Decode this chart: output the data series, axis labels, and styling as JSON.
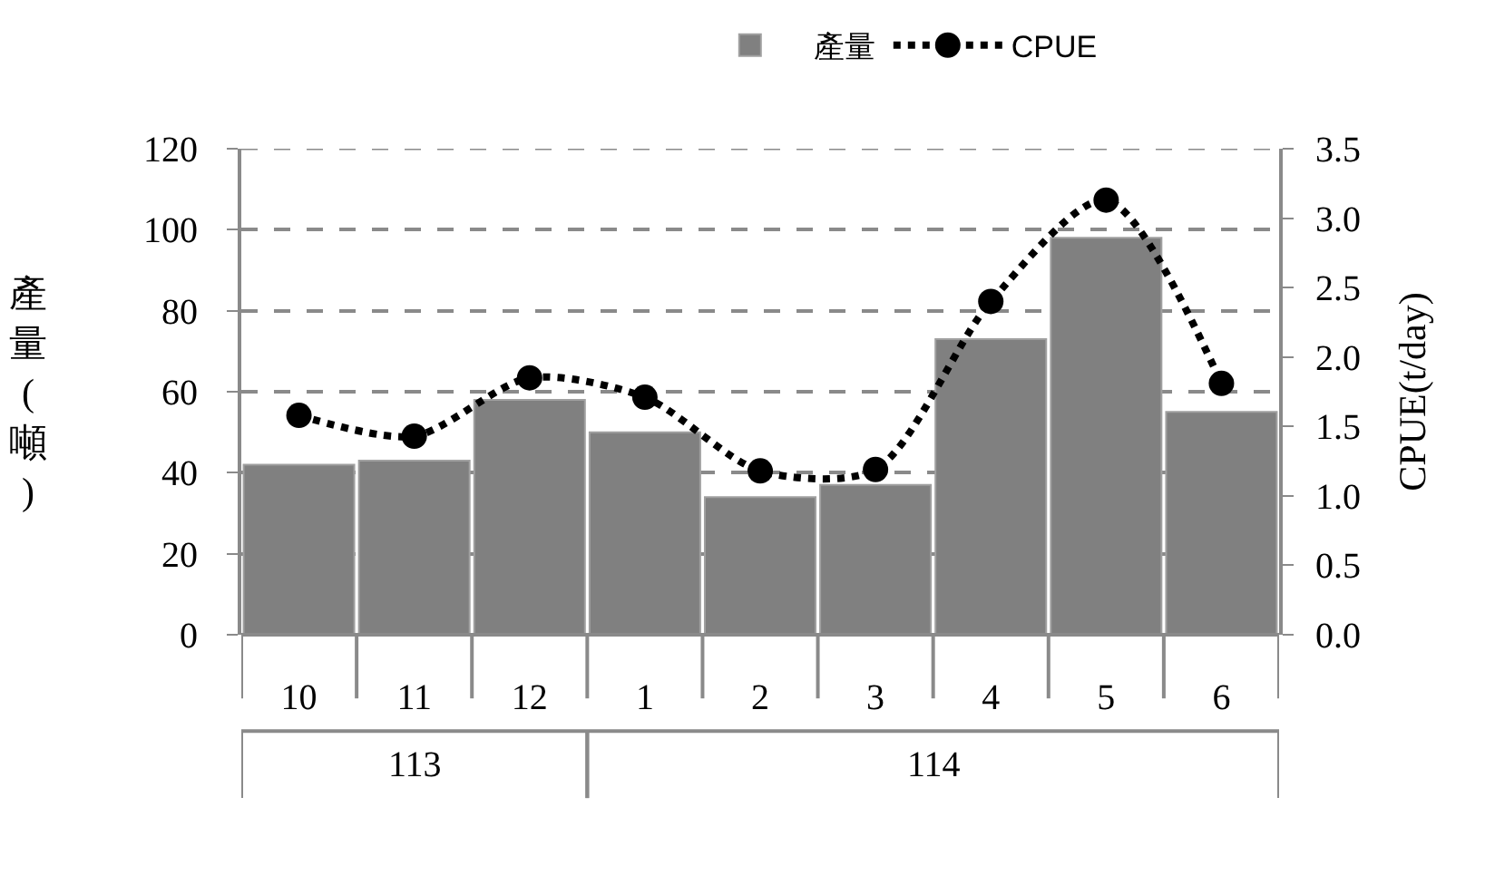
{
  "chart_data": {
    "type": "bar",
    "categories": [
      "10",
      "11",
      "12",
      "1",
      "2",
      "3",
      "4",
      "5",
      "6"
    ],
    "series": [
      {
        "name": "產量",
        "color": "#808080",
        "values": [
          42,
          43,
          58,
          50,
          34,
          37,
          73,
          98,
          55
        ]
      },
      {
        "name": "CPUE",
        "type": "line",
        "axis": "y2",
        "color": "#000000",
        "marker": "circle",
        "line_style": "dotted",
        "values": [
          1.58,
          1.43,
          1.85,
          1.71,
          1.18,
          1.19,
          2.4,
          3.13,
          1.81
        ]
      }
    ],
    "ylabel": "產量(噸)",
    "y2label": "CPUE(t/day)",
    "ylim": [
      0,
      120
    ],
    "yticks": [
      0,
      20,
      40,
      60,
      80,
      100,
      120
    ],
    "y2lim": [
      0,
      3.5
    ],
    "y2ticks": [
      {
        "value": 0,
        "label": "0.0"
      },
      {
        "value": 0.5,
        "label": "0.5"
      },
      {
        "value": 1,
        "label": "1.0"
      },
      {
        "value": 1.5,
        "label": "1.5"
      },
      {
        "value": 2,
        "label": "2.0"
      },
      {
        "value": 2.5,
        "label": "2.5"
      },
      {
        "value": 3,
        "label": "3.0"
      },
      {
        "value": 3.5,
        "label": "3.5"
      }
    ],
    "annotations": [
      "113",
      "114"
    ],
    "grid": "y",
    "legend": "top"
  }
}
